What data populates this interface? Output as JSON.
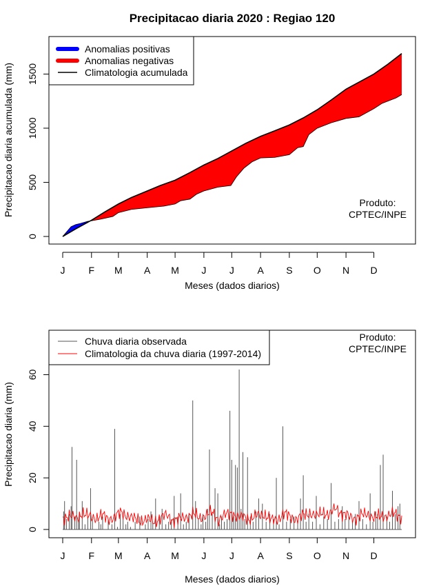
{
  "title": "Precipitacao diaria 2020 : Regiao 120",
  "chart_data": [
    {
      "type": "area",
      "name": "accumulated",
      "xlabel": "Meses (dados diarios)",
      "ylabel": "Precipitacao diaria acumulada (mm)",
      "xlim": [
        1,
        366
      ],
      "ylim": [
        0,
        1700
      ],
      "yticks": [
        0,
        500,
        1000,
        1500
      ],
      "month_labels": [
        "J",
        "F",
        "M",
        "A",
        "M",
        "J",
        "J",
        "A",
        "S",
        "O",
        "N",
        "D"
      ],
      "month_start_days": [
        1,
        32,
        61,
        92,
        122,
        153,
        183,
        214,
        245,
        275,
        306,
        336
      ],
      "legend": {
        "position": "top-left",
        "entries": [
          {
            "label": "Anomalias positivas",
            "color": "#0000ff",
            "kind": "thick-line"
          },
          {
            "label": "Anomalias negativas",
            "color": "#ff0000",
            "kind": "thick-line"
          },
          {
            "label": "Climatologia acumulada",
            "color": "#000000",
            "kind": "line"
          }
        ]
      },
      "annotation": [
        "Produto:",
        "CPTEC/INPE"
      ],
      "series": [
        {
          "name": "Climatologia acumulada",
          "color": "#000000",
          "x": [
            1,
            15,
            32,
            46,
            61,
            75,
            92,
            106,
            122,
            138,
            153,
            168,
            183,
            198,
            214,
            229,
            245,
            260,
            275,
            290,
            306,
            321,
            336,
            351,
            366
          ],
          "y": [
            0,
            70,
            150,
            225,
            300,
            360,
            420,
            470,
            520,
            590,
            660,
            720,
            790,
            860,
            925,
            975,
            1030,
            1095,
            1170,
            1260,
            1360,
            1430,
            1500,
            1590,
            1690
          ]
        },
        {
          "name": "Acumulado observado",
          "color": "#ff0000",
          "x": [
            1,
            10,
            15,
            20,
            28,
            32,
            42,
            50,
            55,
            61,
            75,
            92,
            110,
            122,
            128,
            138,
            145,
            153,
            168,
            182,
            188,
            196,
            205,
            214,
            229,
            245,
            254,
            260,
            266,
            275,
            290,
            306,
            320,
            336,
            345,
            360,
            366
          ],
          "y": [
            0,
            90,
            110,
            120,
            140,
            145,
            160,
            175,
            185,
            220,
            250,
            265,
            280,
            300,
            330,
            345,
            390,
            420,
            455,
            470,
            550,
            630,
            690,
            725,
            730,
            755,
            820,
            830,
            940,
            1000,
            1050,
            1090,
            1105,
            1180,
            1230,
            1280,
            1310
          ]
        }
      ]
    },
    {
      "type": "bar",
      "name": "daily",
      "xlabel": "Meses (dados diarios)",
      "ylabel": "Precipitacao diaria (mm)",
      "xlim": [
        1,
        366
      ],
      "ylim": [
        0,
        62
      ],
      "yticks": [
        0,
        20,
        40,
        60
      ],
      "month_labels": [
        "J",
        "F",
        "M",
        "A",
        "M",
        "J",
        "J",
        "A",
        "S",
        "O",
        "N",
        "D"
      ],
      "month_start_days": [
        1,
        32,
        61,
        92,
        122,
        153,
        183,
        214,
        245,
        275,
        306,
        336
      ],
      "legend": {
        "position": "top-left",
        "entries": [
          {
            "label": "Chuva diaria observada",
            "color": "#555555",
            "kind": "line"
          },
          {
            "label": "Climatologia da chuva diaria (1997-2014)",
            "color": "#ff0000",
            "kind": "line"
          }
        ]
      },
      "annotation": [
        "Produto:",
        "CPTEC/INPE"
      ],
      "series": [
        {
          "name": "Chuva diaria observada",
          "color": "#555555",
          "x": [
            2,
            3,
            5,
            8,
            10,
            11,
            14,
            16,
            18,
            19,
            22,
            25,
            28,
            31,
            33,
            40,
            42,
            44,
            50,
            54,
            57,
            60,
            63,
            66,
            69,
            71,
            74,
            79,
            84,
            90,
            93,
            96,
            98,
            101,
            105,
            108,
            112,
            115,
            118,
            121,
            125,
            128,
            131,
            134,
            137,
            141,
            144,
            147,
            150,
            152,
            155,
            157,
            159,
            162,
            165,
            168,
            170,
            172,
            175,
            178,
            181,
            183,
            185,
            187,
            189,
            191,
            193,
            195,
            197,
            200,
            203,
            206,
            209,
            212,
            216,
            220,
            224,
            228,
            231,
            234,
            238,
            242,
            246,
            250,
            254,
            257,
            260,
            263,
            266,
            270,
            274,
            278,
            282,
            286,
            290,
            294,
            298,
            302,
            305,
            309,
            313,
            316,
            320,
            324,
            328,
            332,
            335,
            338,
            340,
            343,
            346,
            350,
            353,
            356,
            359,
            362,
            364
          ],
          "y": [
            7,
            11,
            4,
            6,
            9,
            32,
            5,
            27,
            3,
            6,
            11,
            2,
            5,
            16,
            4,
            3,
            2,
            5,
            4,
            2,
            39,
            1,
            6,
            4,
            2,
            3,
            1,
            3,
            5,
            2,
            4,
            7,
            3,
            12,
            5,
            8,
            2,
            3,
            4,
            13,
            5,
            14,
            2,
            3,
            6,
            50,
            11,
            4,
            2,
            6,
            3,
            8,
            31,
            6,
            16,
            14,
            2,
            5,
            3,
            4,
            46,
            27,
            5,
            25,
            24,
            62,
            8,
            30,
            4,
            28,
            5,
            3,
            7,
            12,
            10,
            3,
            6,
            4,
            20,
            2,
            40,
            3,
            4,
            5,
            3,
            12,
            21,
            3,
            6,
            3,
            13,
            2,
            5,
            4,
            18,
            3,
            4,
            9,
            4,
            5,
            3,
            6,
            11,
            4,
            2,
            14,
            3,
            7,
            6,
            25,
            29,
            5,
            3,
            15,
            6,
            9,
            10
          ]
        },
        {
          "name": "Climatologia da chuva diaria (1997-2014)",
          "color": "#ff0000",
          "x": [
            1,
            8,
            15,
            22,
            29,
            36,
            43,
            50,
            57,
            64,
            71,
            78,
            85,
            92,
            99,
            106,
            113,
            120,
            127,
            134,
            141,
            148,
            155,
            162,
            169,
            176,
            183,
            190,
            197,
            204,
            211,
            218,
            225,
            232,
            239,
            246,
            253,
            260,
            267,
            274,
            281,
            288,
            295,
            302,
            309,
            316,
            323,
            330,
            337,
            344,
            351,
            358,
            366
          ],
          "y": [
            4.5,
            5.5,
            4.0,
            6.5,
            5.0,
            4.5,
            5.5,
            4.0,
            5.0,
            6.5,
            5.5,
            4.0,
            3.5,
            4.0,
            3.0,
            4.5,
            5.5,
            3.5,
            4.0,
            5.0,
            6.0,
            4.5,
            5.5,
            6.5,
            4.0,
            5.5,
            6.5,
            4.5,
            5.0,
            4.0,
            5.5,
            6.0,
            3.5,
            4.0,
            6.0,
            5.0,
            4.0,
            5.5,
            6.5,
            5.0,
            7.0,
            5.5,
            8.5,
            6.0,
            5.0,
            4.5,
            5.5,
            6.0,
            4.5,
            5.0,
            5.5,
            6.0,
            5.0
          ]
        }
      ]
    }
  ]
}
